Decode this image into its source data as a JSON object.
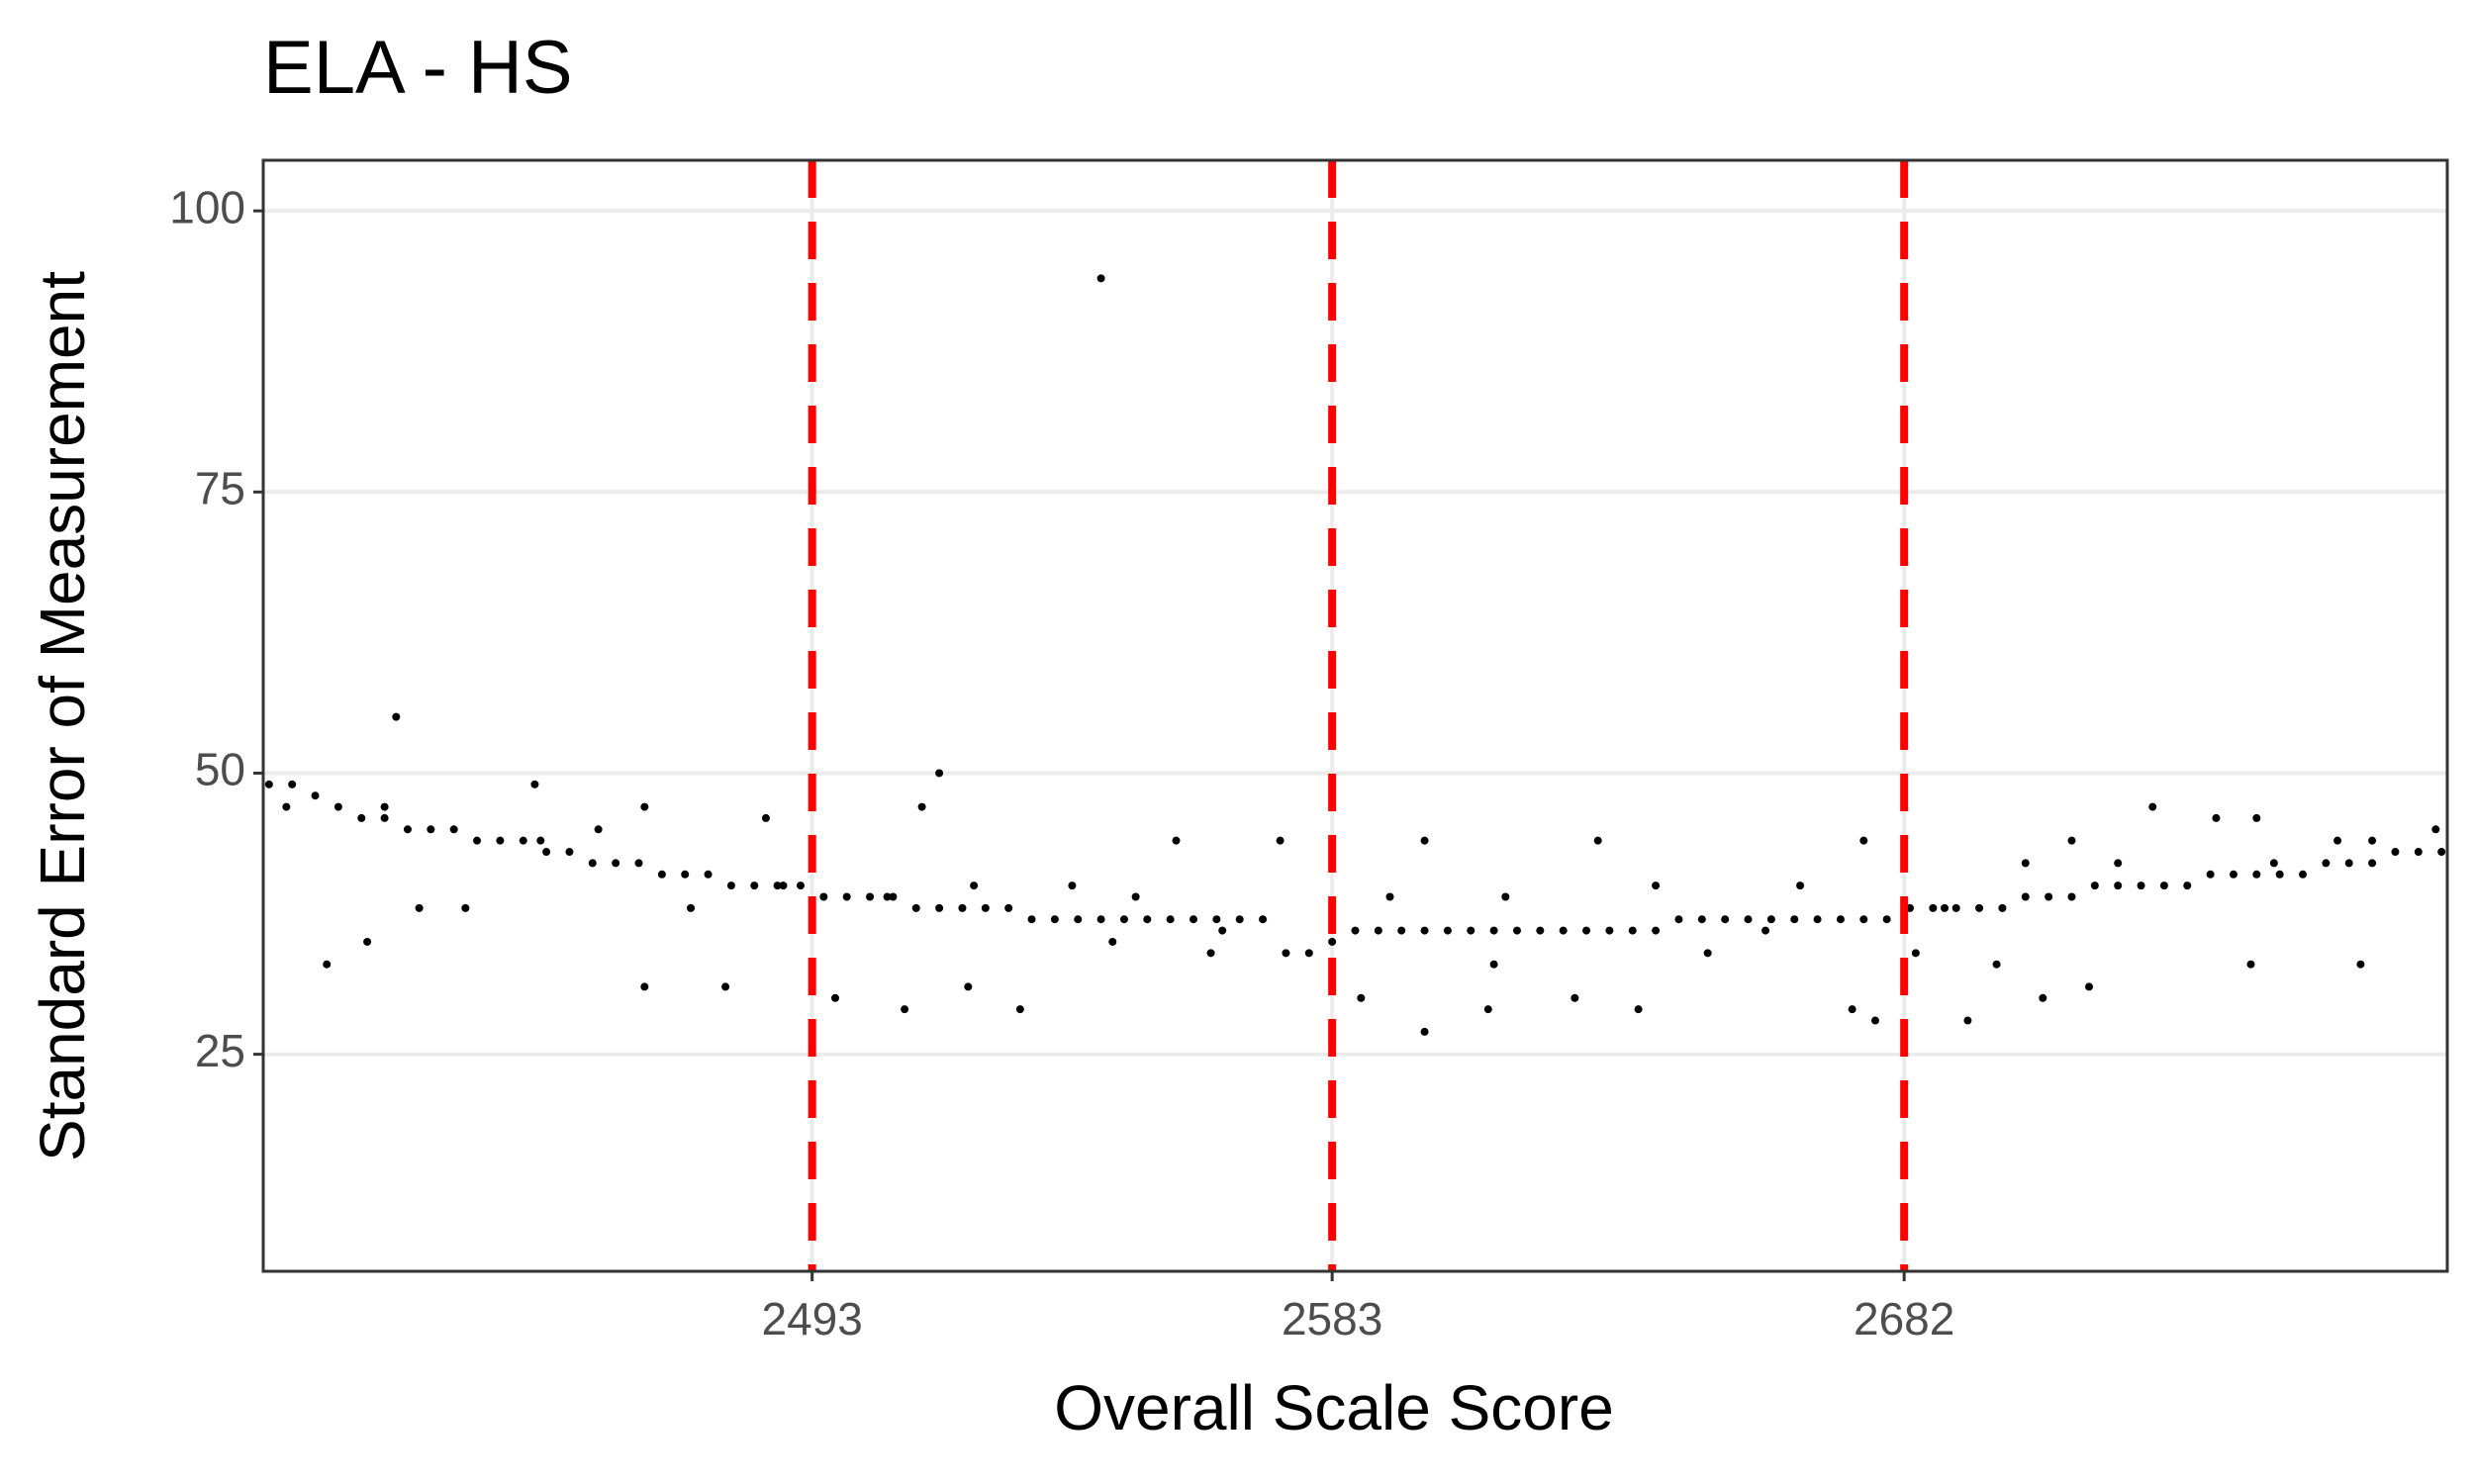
{
  "chart_data": {
    "type": "scatter",
    "title": "ELA - HS",
    "x_label": "Overall Scale Score",
    "y_label": "Standard Error of Measurement",
    "xlim": [
      2398,
      2776
    ],
    "ylim": [
      5.7,
      104.5
    ],
    "xticks": [
      2493,
      2583,
      2682
    ],
    "yticks": [
      25,
      50,
      75,
      100
    ],
    "grid": true,
    "vlines": {
      "values": [
        2493,
        2583,
        2682
      ],
      "color": "#ff0000",
      "dashed": true
    },
    "series": [
      {
        "color": "#000000",
        "x": [
          2399,
          2403,
          2407,
          2411,
          2415,
          2419,
          2423,
          2427,
          2431,
          2435,
          2439,
          2443,
          2447,
          2451,
          2455,
          2459,
          2463,
          2467,
          2471,
          2475,
          2479,
          2483,
          2487,
          2491,
          2495,
          2499,
          2503,
          2507,
          2511,
          2515,
          2519,
          2523,
          2527,
          2531,
          2535,
          2539,
          2543,
          2547,
          2551,
          2555,
          2559,
          2563,
          2567,
          2571,
          2575,
          2579,
          2583,
          2587,
          2591,
          2595,
          2599,
          2603,
          2607,
          2611,
          2615,
          2619,
          2623,
          2627,
          2631,
          2635,
          2639,
          2643,
          2647,
          2651,
          2655,
          2659,
          2663,
          2667,
          2671,
          2675,
          2679,
          2683,
          2687,
          2691,
          2695,
          2699,
          2703,
          2707,
          2711,
          2715,
          2719,
          2723,
          2727,
          2731,
          2735,
          2739,
          2743,
          2747,
          2751,
          2755,
          2759,
          2763,
          2767,
          2771,
          2775,
          2543,
          2421,
          2409,
          2416,
          2515,
          2464,
          2478,
          2509,
          2529,
          2599,
          2673,
          2677,
          2693,
          2725,
          2711,
          2743,
          2761,
          2485,
          2445,
          2456,
          2464,
          2512,
          2556,
          2574,
          2599,
          2629,
          2675,
          2736,
          2757,
          2774,
          2497,
          2520,
          2545,
          2564,
          2588,
          2610,
          2625,
          2636,
          2648,
          2658,
          2684,
          2698,
          2706,
          2714,
          2742,
          2402,
          2433,
          2446,
          2472,
          2488,
          2506,
          2521,
          2538,
          2549,
          2593,
          2613,
          2639,
          2664,
          2689,
          2703,
          2719,
          2746,
          2763,
          2425,
          2419,
          2562,
          2611
        ],
        "values": [
          49,
          49,
          48,
          47,
          46,
          46,
          45,
          45,
          45,
          44,
          44,
          44,
          43,
          43,
          42,
          42,
          42,
          41,
          41,
          41,
          40,
          40,
          40,
          40,
          39,
          39,
          39,
          39,
          38,
          38,
          38,
          38,
          38,
          37,
          37,
          37,
          37,
          37,
          37,
          37,
          37,
          37,
          37,
          37,
          34,
          34,
          35,
          36,
          36,
          36,
          36,
          36,
          36,
          36,
          36,
          36,
          36,
          36,
          36,
          36,
          36,
          37,
          37,
          37,
          37,
          37,
          37,
          37,
          37,
          37,
          37,
          38,
          38,
          38,
          38,
          38,
          39,
          39,
          39,
          40,
          40,
          40,
          40,
          40,
          41,
          41,
          41,
          41,
          41,
          42,
          42,
          42,
          43,
          43,
          43,
          94,
          55,
          33,
          35,
          50,
          31,
          31,
          29,
          29,
          27,
          29,
          28,
          28,
          47,
          44,
          46,
          33,
          46,
          49,
          45,
          47,
          47,
          44,
          44,
          44,
          44,
          44,
          46,
          44,
          45,
          30,
          31,
          35,
          36,
          30,
          29,
          30,
          29,
          34,
          36,
          34,
          33,
          30,
          31,
          33,
          47,
          38,
          44,
          38,
          40,
          39,
          40,
          40,
          39,
          39,
          39,
          40,
          40,
          38,
          42,
          42,
          42,
          44,
          38,
          47,
          34,
          33
        ]
      }
    ]
  }
}
